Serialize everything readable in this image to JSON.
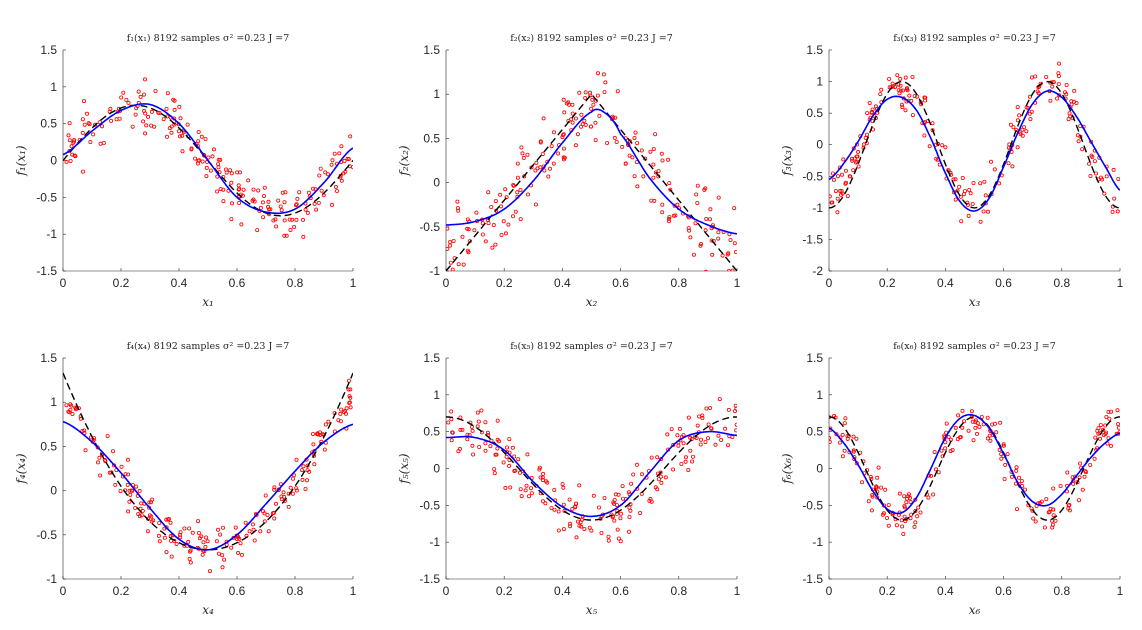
{
  "colors": {
    "scatter": "#ff0000",
    "fit": "#0000ff",
    "truth": "#000000",
    "axis": "#262626"
  },
  "chart_data": [
    {
      "type": "scatter",
      "title": "f₁(x₁) 8192 samples σ² =0.23 J =7",
      "xlabel": "x₁",
      "ylabel": "f₁(x₁)",
      "xlim": [
        0,
        1
      ],
      "ylim": [
        -1.5,
        1.5
      ],
      "xticks": [
        "0",
        "0.2",
        "0.4",
        "0.6",
        "0.8",
        "1"
      ],
      "yticks": [
        "-1.5",
        "-1",
        "-0.5",
        "0",
        "0.5",
        "1",
        "1.5"
      ],
      "truth": {
        "kind": "sin",
        "amplitude": 0.75,
        "frequency": 1,
        "phase": 0,
        "offset": 0
      },
      "fit": {
        "x": [
          0,
          0.1,
          0.2,
          0.3,
          0.4,
          0.5,
          0.6,
          0.7,
          0.8,
          0.9,
          1.0
        ],
        "y": [
          0.08,
          0.4,
          0.68,
          0.76,
          0.5,
          0.0,
          -0.5,
          -0.7,
          -0.66,
          -0.3,
          0.17
        ]
      },
      "scatter": {
        "count": 220,
        "noise": 0.17,
        "seed": 11
      }
    },
    {
      "type": "scatter",
      "title": "f₂(x₂) 8192 samples σ² =0.23 J =7",
      "xlabel": "x₂",
      "ylabel": "f₂(x₂)",
      "xlim": [
        0,
        1
      ],
      "ylim": [
        -1,
        1.5
      ],
      "xticks": [
        "0",
        "0.2",
        "0.4",
        "0.6",
        "0.8",
        "1"
      ],
      "yticks": [
        "-1",
        "-0.5",
        "0",
        "0.5",
        "1",
        "1.5"
      ],
      "truth": {
        "kind": "tent",
        "amplitude": 1,
        "frequency": 1,
        "phase": 0,
        "offset": 0
      },
      "fit": {
        "x": [
          0,
          0.1,
          0.2,
          0.3,
          0.4,
          0.5,
          0.55,
          0.6,
          0.7,
          0.8,
          0.9,
          1.0
        ],
        "y": [
          -0.48,
          -0.44,
          -0.3,
          0.02,
          0.45,
          0.8,
          0.78,
          0.55,
          0.05,
          -0.3,
          -0.48,
          -0.58
        ]
      },
      "scatter": {
        "count": 220,
        "noise": 0.22,
        "seed": 23
      }
    },
    {
      "type": "scatter",
      "title": "f₃(x₃) 8192 samples σ² =0.23 J =7",
      "xlabel": "x₃",
      "ylabel": "f₃(x₃)",
      "xlim": [
        0,
        1
      ],
      "ylim": [
        -2,
        1.5
      ],
      "xticks": [
        "0",
        "0.2",
        "0.4",
        "0.6",
        "0.8",
        "1"
      ],
      "yticks": [
        "-2",
        "-1.5",
        "-1",
        "-0.5",
        "0",
        "0.5",
        "1",
        "1.5"
      ],
      "truth": {
        "kind": "cos",
        "amplitude": -1,
        "frequency": 2,
        "phase": 0,
        "offset": 0
      },
      "fit": {
        "x": [
          0,
          0.05,
          0.1,
          0.15,
          0.2,
          0.25,
          0.3,
          0.35,
          0.4,
          0.45,
          0.5,
          0.55,
          0.6,
          0.65,
          0.7,
          0.75,
          0.8,
          0.85,
          0.9,
          0.95,
          1.0
        ],
        "y": [
          -0.55,
          -0.3,
          0.05,
          0.45,
          0.72,
          0.75,
          0.55,
          0.1,
          -0.45,
          -0.9,
          -1.05,
          -0.85,
          -0.35,
          0.2,
          0.65,
          0.85,
          0.75,
          0.45,
          0.05,
          -0.35,
          -0.72
        ]
      },
      "scatter": {
        "count": 230,
        "noise": 0.18,
        "seed": 37
      }
    },
    {
      "type": "scatter",
      "title": "f₄(x₄) 8192 samples σ² =0.23 J =7",
      "xlabel": "x₄",
      "ylabel": "f₄(x₄)",
      "xlim": [
        0,
        1
      ],
      "ylim": [
        -1,
        1.5
      ],
      "xticks": [
        "0",
        "0.2",
        "0.4",
        "0.6",
        "0.8",
        "1"
      ],
      "yticks": [
        "-1",
        "-0.5",
        "0",
        "0.5",
        "1",
        "1.5"
      ],
      "truth": {
        "kind": "parabola",
        "amplitude": 8,
        "frequency": 1,
        "phase": 0,
        "offset": -0.67
      },
      "fit": {
        "x": [
          0,
          0.1,
          0.2,
          0.3,
          0.4,
          0.5,
          0.6,
          0.7,
          0.8,
          0.9,
          1.0
        ],
        "y": [
          0.78,
          0.55,
          0.2,
          -0.2,
          -0.55,
          -0.67,
          -0.5,
          -0.15,
          0.22,
          0.55,
          0.75
        ]
      },
      "scatter": {
        "count": 220,
        "noise": 0.12,
        "seed": 41
      }
    },
    {
      "type": "scatter",
      "title": "f₅(x₅) 8192 samples σ² =0.23 J =7",
      "xlabel": "x₅",
      "ylabel": "f₅(x₅)",
      "xlim": [
        0,
        1
      ],
      "ylim": [
        -1.5,
        1.5
      ],
      "xticks": [
        "0",
        "0.2",
        "0.4",
        "0.6",
        "0.8",
        "1"
      ],
      "yticks": [
        "-1.5",
        "-1",
        "-0.5",
        "0",
        "0.5",
        "1",
        "1.5"
      ],
      "truth": {
        "kind": "cos",
        "amplitude": 0.7,
        "frequency": 1,
        "phase": 0,
        "offset": 0
      },
      "fit": {
        "x": [
          0,
          0.1,
          0.2,
          0.3,
          0.4,
          0.5,
          0.6,
          0.7,
          0.8,
          0.9,
          1.0
        ],
        "y": [
          0.42,
          0.42,
          0.25,
          -0.18,
          -0.52,
          -0.65,
          -0.5,
          -0.05,
          0.38,
          0.5,
          0.45
        ]
      },
      "scatter": {
        "count": 220,
        "noise": 0.2,
        "seed": 53
      }
    },
    {
      "type": "scatter",
      "title": "f₆(x₆) 8192 samples σ² =0.23 J =7",
      "xlabel": "x₆",
      "ylabel": "f₆(x₆)",
      "xlim": [
        0,
        1
      ],
      "ylim": [
        -1.5,
        1.5
      ],
      "xticks": [
        "0",
        "0.2",
        "0.4",
        "0.6",
        "0.8",
        "1"
      ],
      "yticks": [
        "-1.5",
        "-1",
        "-0.5",
        "0",
        "0.5",
        "1",
        "1.5"
      ],
      "truth": {
        "kind": "cos",
        "amplitude": 0.7,
        "frequency": 2,
        "phase": 0,
        "offset": 0
      },
      "fit": {
        "x": [
          0,
          0.05,
          0.1,
          0.15,
          0.2,
          0.25,
          0.3,
          0.35,
          0.4,
          0.45,
          0.5,
          0.55,
          0.6,
          0.65,
          0.7,
          0.75,
          0.8,
          0.85,
          0.9,
          0.95,
          1.0
        ],
        "y": [
          0.55,
          0.35,
          0.05,
          -0.3,
          -0.55,
          -0.6,
          -0.4,
          0.0,
          0.42,
          0.68,
          0.72,
          0.55,
          0.2,
          -0.2,
          -0.45,
          -0.5,
          -0.35,
          -0.1,
          0.15,
          0.35,
          0.48
        ]
      },
      "scatter": {
        "count": 230,
        "noise": 0.15,
        "seed": 67
      }
    }
  ]
}
